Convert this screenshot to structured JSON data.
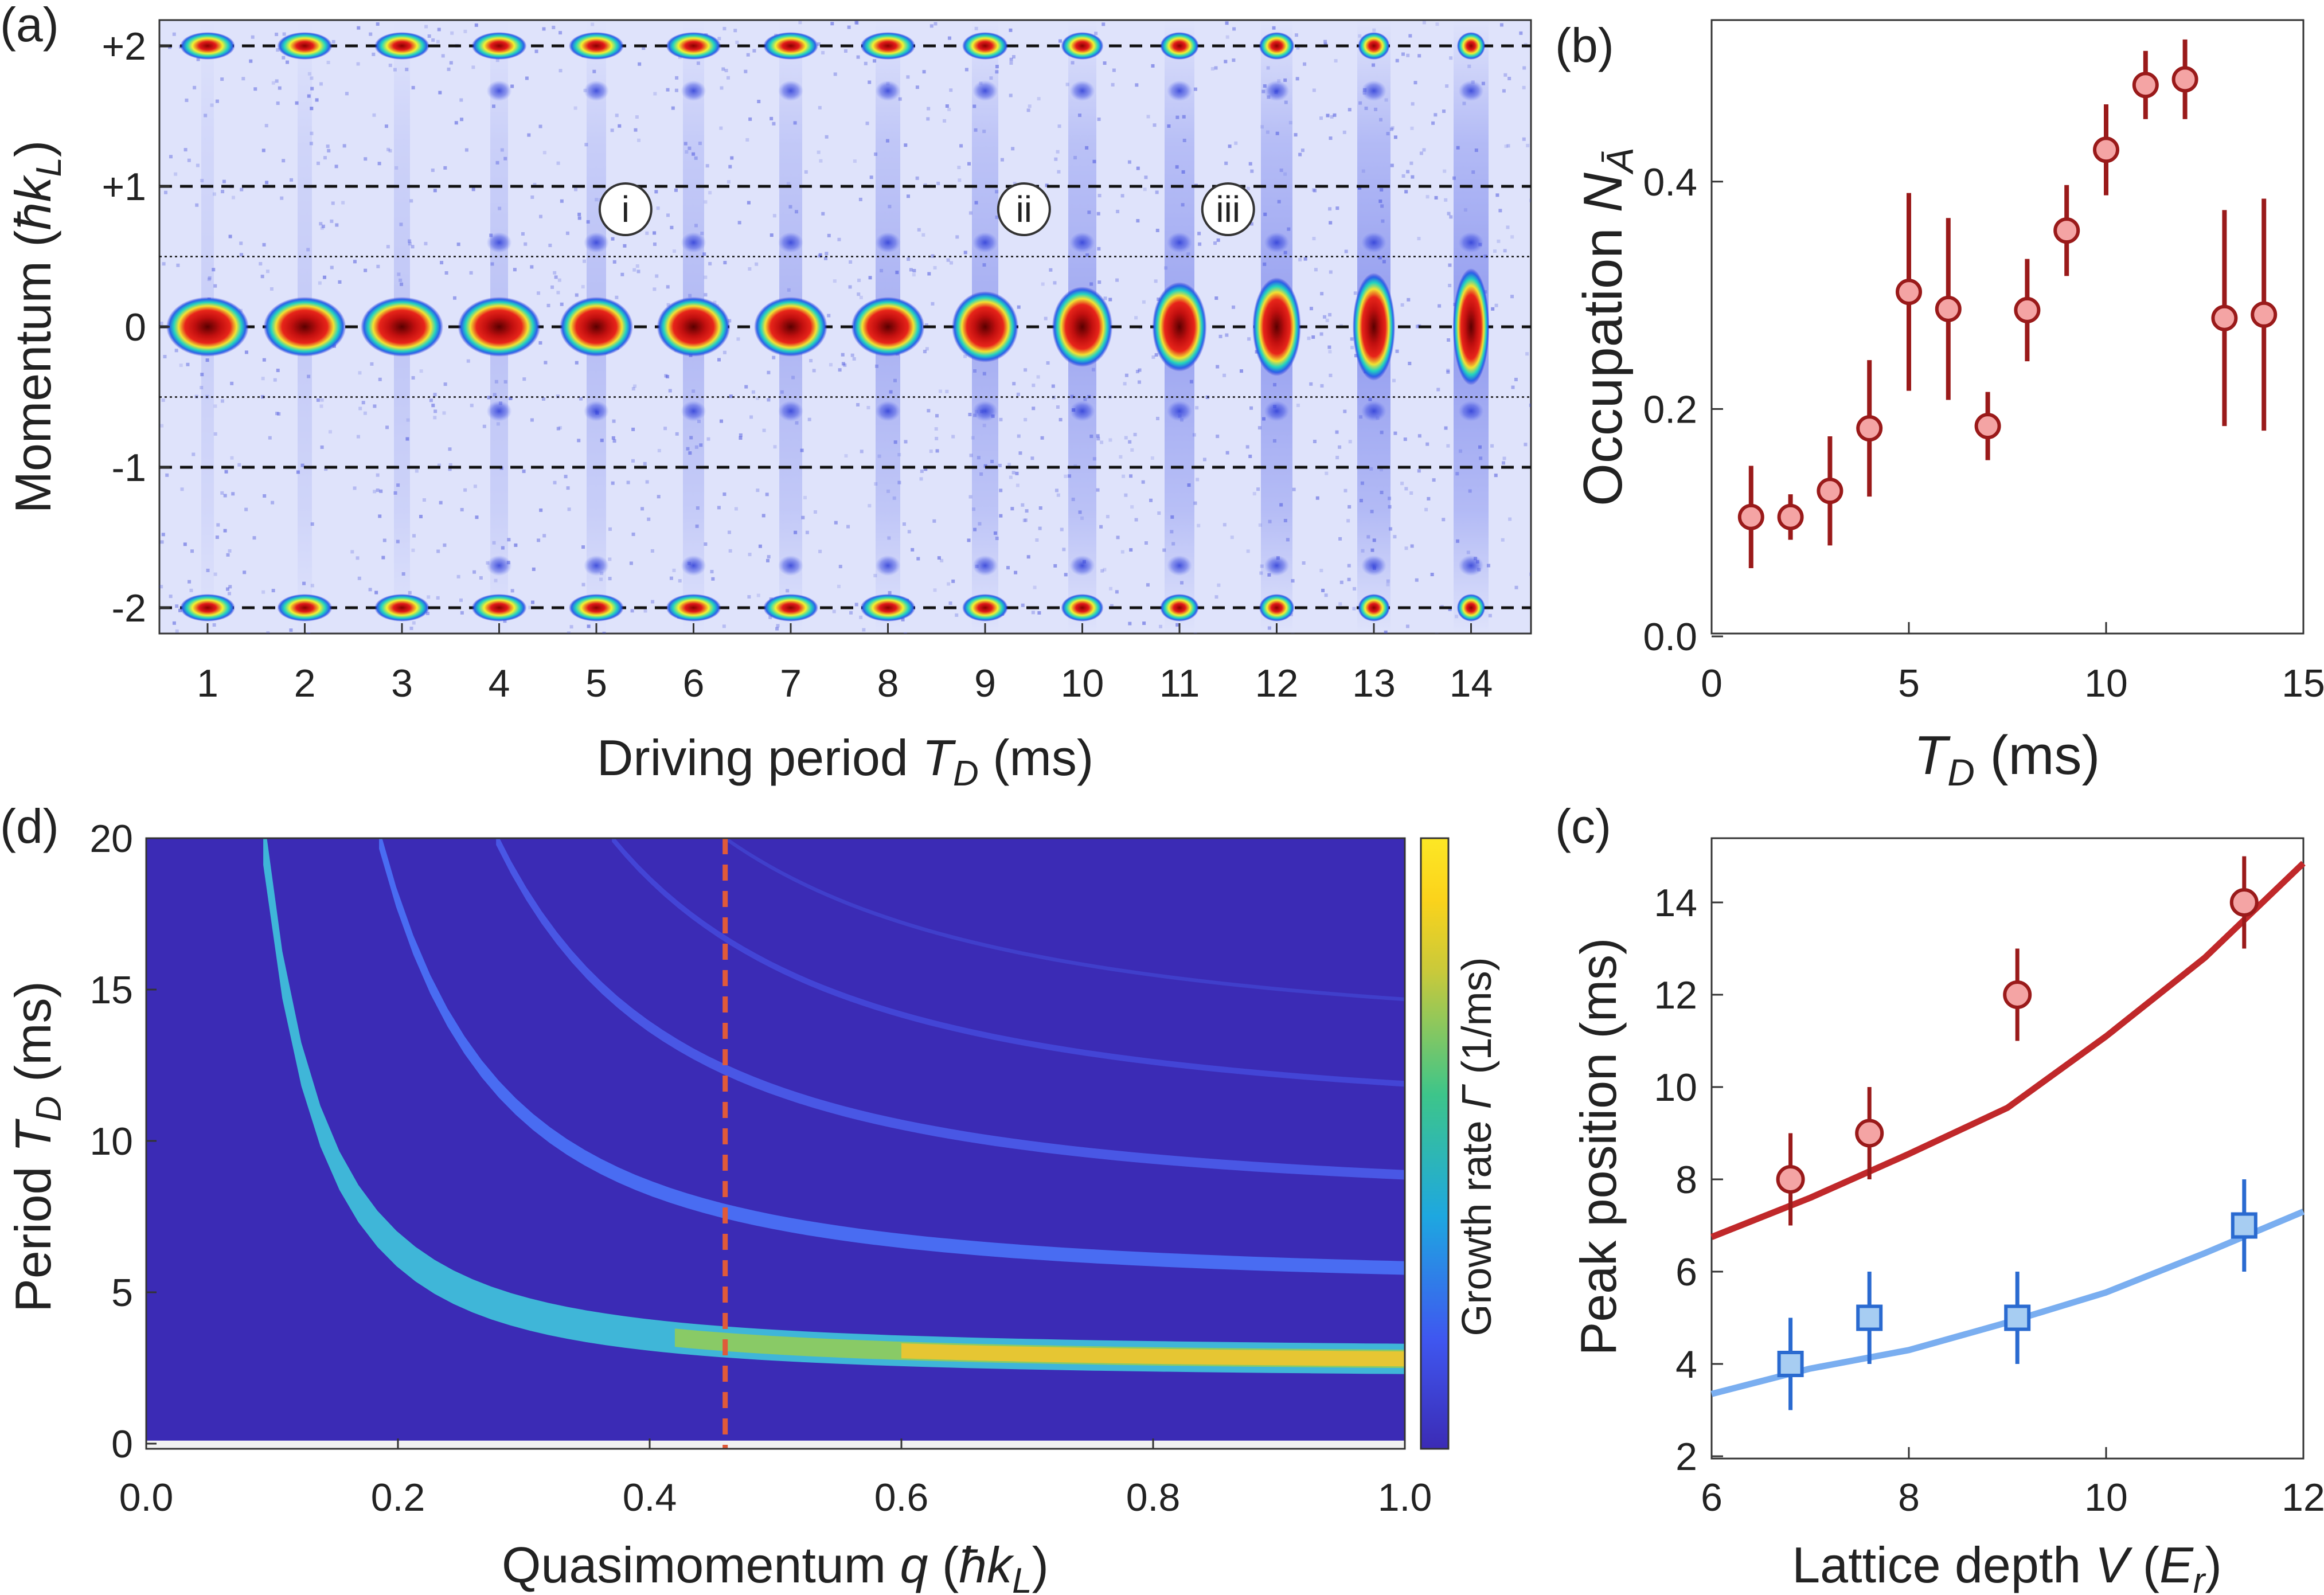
{
  "panels": {
    "a": {
      "tag": "(a)"
    },
    "b": {
      "tag": "(b)"
    },
    "c": {
      "tag": "(c)"
    },
    "d": {
      "tag": "(d)"
    }
  },
  "chart_data": [
    {
      "panel": "a",
      "type": "heatmap",
      "description_source": "absorption images (momentum distributions) vs driving period",
      "xlabel": "Driving period T_D (ms)",
      "ylabel": "Momentum (ħk_L)",
      "x_ticks": [
        "1",
        "2",
        "3",
        "4",
        "5",
        "6",
        "7",
        "8",
        "9",
        "10",
        "11",
        "12",
        "13",
        "14"
      ],
      "y_ticks": [
        "+2",
        "+1",
        "0",
        "-1",
        "-2"
      ],
      "dashed_lines_at_momentum": [
        2,
        1,
        0,
        -1,
        -2
      ],
      "dotted_lines_at_momentum": [
        0.5,
        -0.5
      ],
      "annotations": [
        {
          "label": "i",
          "x": 5.3
        },
        {
          "label": "ii",
          "x": 9.4
        },
        {
          "label": "iii",
          "x": 11.5
        }
      ],
      "colormap": [
        "#ffffff",
        "#2a2ad6",
        "#22d3c0",
        "#f2f231",
        "#e21a1a",
        "#5a0000"
      ]
    },
    {
      "panel": "b",
      "type": "scatter",
      "xlabel": "T_D (ms)",
      "ylabel": "Occupation N_Ā",
      "xlim": [
        0,
        15
      ],
      "ylim": [
        0,
        0.55
      ],
      "x_ticks": [
        0,
        5,
        10,
        15
      ],
      "y_ticks": [
        0.0,
        0.2,
        0.4
      ],
      "y_tick_labels": [
        "0.0",
        "0.2",
        "0.4"
      ],
      "series": [
        {
          "marker_color": "#f4a4a4",
          "edge_color": "#9a1a1a",
          "points": [
            {
              "x": 1,
              "y": 0.105,
              "err": 0.045
            },
            {
              "x": 2,
              "y": 0.105,
              "err": 0.02
            },
            {
              "x": 3,
              "y": 0.128,
              "err": 0.048
            },
            {
              "x": 4,
              "y": 0.183,
              "err": 0.06
            },
            {
              "x": 5,
              "y": 0.303,
              "err": 0.087
            },
            {
              "x": 6,
              "y": 0.288,
              "err": 0.08
            },
            {
              "x": 7,
              "y": 0.185,
              "err": 0.03
            },
            {
              "x": 8,
              "y": 0.287,
              "err": 0.045
            },
            {
              "x": 9,
              "y": 0.357,
              "err": 0.04
            },
            {
              "x": 10,
              "y": 0.428,
              "err": 0.04
            },
            {
              "x": 11,
              "y": 0.485,
              "err": 0.03
            },
            {
              "x": 12,
              "y": 0.49,
              "err": 0.035
            },
            {
              "x": 13,
              "y": 0.28,
              "err": 0.095
            },
            {
              "x": 14,
              "y": 0.283,
              "err": 0.102
            }
          ]
        }
      ]
    },
    {
      "panel": "c",
      "type": "scatter",
      "xlabel": "Lattice depth V (E_r)",
      "ylabel": "Peak position (ms)",
      "xlim": [
        6,
        12
      ],
      "ylim": [
        2,
        15.5
      ],
      "x_ticks": [
        6,
        8,
        10,
        12
      ],
      "y_ticks": [
        2,
        4,
        6,
        8,
        10,
        12,
        14
      ],
      "series": [
        {
          "color": "#c0282a",
          "marker_color": "#f4a4a4",
          "edge_color": "#9a1a1a",
          "marker": "circle",
          "points": [
            {
              "x": 6.8,
              "y": 8,
              "err": 1
            },
            {
              "x": 7.6,
              "y": 9,
              "err": 1
            },
            {
              "x": 9.1,
              "y": 12,
              "err": 1
            },
            {
              "x": 11.4,
              "y": 14,
              "err": 1
            }
          ],
          "line": [
            [
              6,
              6.75
            ],
            [
              7,
              7.6
            ],
            [
              8,
              8.55
            ],
            [
              9,
              9.55
            ],
            [
              10,
              11.1
            ],
            [
              11,
              12.8
            ],
            [
              12,
              14.85
            ]
          ]
        },
        {
          "color": "#7aaef0",
          "marker_color": "#a7cdf2",
          "edge_color": "#2a6ad0",
          "marker": "square",
          "points": [
            {
              "x": 6.8,
              "y": 4,
              "err": 1
            },
            {
              "x": 7.6,
              "y": 5,
              "err": 1
            },
            {
              "x": 9.1,
              "y": 5,
              "err": 1
            },
            {
              "x": 11.4,
              "y": 7,
              "err": 1
            }
          ],
          "line": [
            [
              6,
              3.35
            ],
            [
              7,
              3.9
            ],
            [
              8,
              4.3
            ],
            [
              9,
              4.9
            ],
            [
              10,
              5.55
            ],
            [
              11,
              6.4
            ],
            [
              12,
              7.3
            ]
          ]
        }
      ]
    },
    {
      "panel": "d",
      "type": "heatmap",
      "xlabel": "Quasimomentum q (ħk_L)",
      "ylabel": "Period T_D (ms)",
      "colorbar_label": "Growth rate Γ (1/ms)",
      "xlim": [
        0,
        1
      ],
      "ylim": [
        0,
        20
      ],
      "x_ticks": [
        0.0,
        0.2,
        0.4,
        0.6,
        0.8,
        1.0
      ],
      "x_tick_labels": [
        "0.0",
        "0.2",
        "0.4",
        "0.6",
        "0.8",
        "1.0"
      ],
      "y_ticks": [
        0,
        5,
        10,
        15,
        20
      ],
      "dashed_line_q": 0.46,
      "background_color": "#3b2bb5",
      "resonance_bands": [
        {
          "order": 1,
          "asymptote_ms": 2.65,
          "q_top": 0.093,
          "width_ms": 0.55
        },
        {
          "order": 2,
          "asymptote_ms": 5.3,
          "q_top": 0.185,
          "width_ms": 0.35
        },
        {
          "order": 3,
          "asymptote_ms": 7.95,
          "q_top": 0.278,
          "width_ms": 0.22
        },
        {
          "order": 4,
          "asymptote_ms": 10.6,
          "q_top": 0.37,
          "width_ms": 0.12
        },
        {
          "order": 5,
          "asymptote_ms": 13.25,
          "q_top": 0.46,
          "width_ms": 0.07
        }
      ],
      "colormap": [
        "#3b2bb5",
        "#3f57f0",
        "#1ea7e0",
        "#3dc58a",
        "#c8c93b",
        "#fbd31b",
        "#fde725"
      ]
    }
  ],
  "labels": {
    "a_xlabel_prefix": "Driving period ",
    "a_xlabel_var": "T",
    "a_xlabel_sub": "D",
    "a_xlabel_suffix": " (ms)",
    "a_ylabel_prefix": "Momentum (",
    "a_ylabel_var": "ħk",
    "a_ylabel_sub": "L",
    "a_ylabel_suffix": ")",
    "b_xlabel_var": "T",
    "b_xlabel_sub": "D",
    "b_xlabel_suffix": " (ms)",
    "b_ylabel_prefix": "Occupation ",
    "b_ylabel_var": "N",
    "b_ylabel_sub": "Ā",
    "c_xlabel_prefix": "Lattice depth ",
    "c_xlabel_var": "V",
    "c_xlabel_mid": " (",
    "c_xlabel_var2": "E",
    "c_xlabel_sub": "r",
    "c_xlabel_suffix": ")",
    "c_ylabel": "Peak position (ms)",
    "d_xlabel_prefix": "Quasimomentum ",
    "d_xlabel_var": "q",
    "d_xlabel_mid": " (",
    "d_xlabel_var2": "ħk",
    "d_xlabel_sub": "L",
    "d_xlabel_suffix": ")",
    "d_ylabel_prefix": "Period ",
    "d_ylabel_var": "T",
    "d_ylabel_sub": "D",
    "d_ylabel_suffix": " (ms)",
    "d_cbar_prefix": "Growth rate ",
    "d_cbar_var": "Γ",
    "d_cbar_suffix": " (1/ms)"
  }
}
